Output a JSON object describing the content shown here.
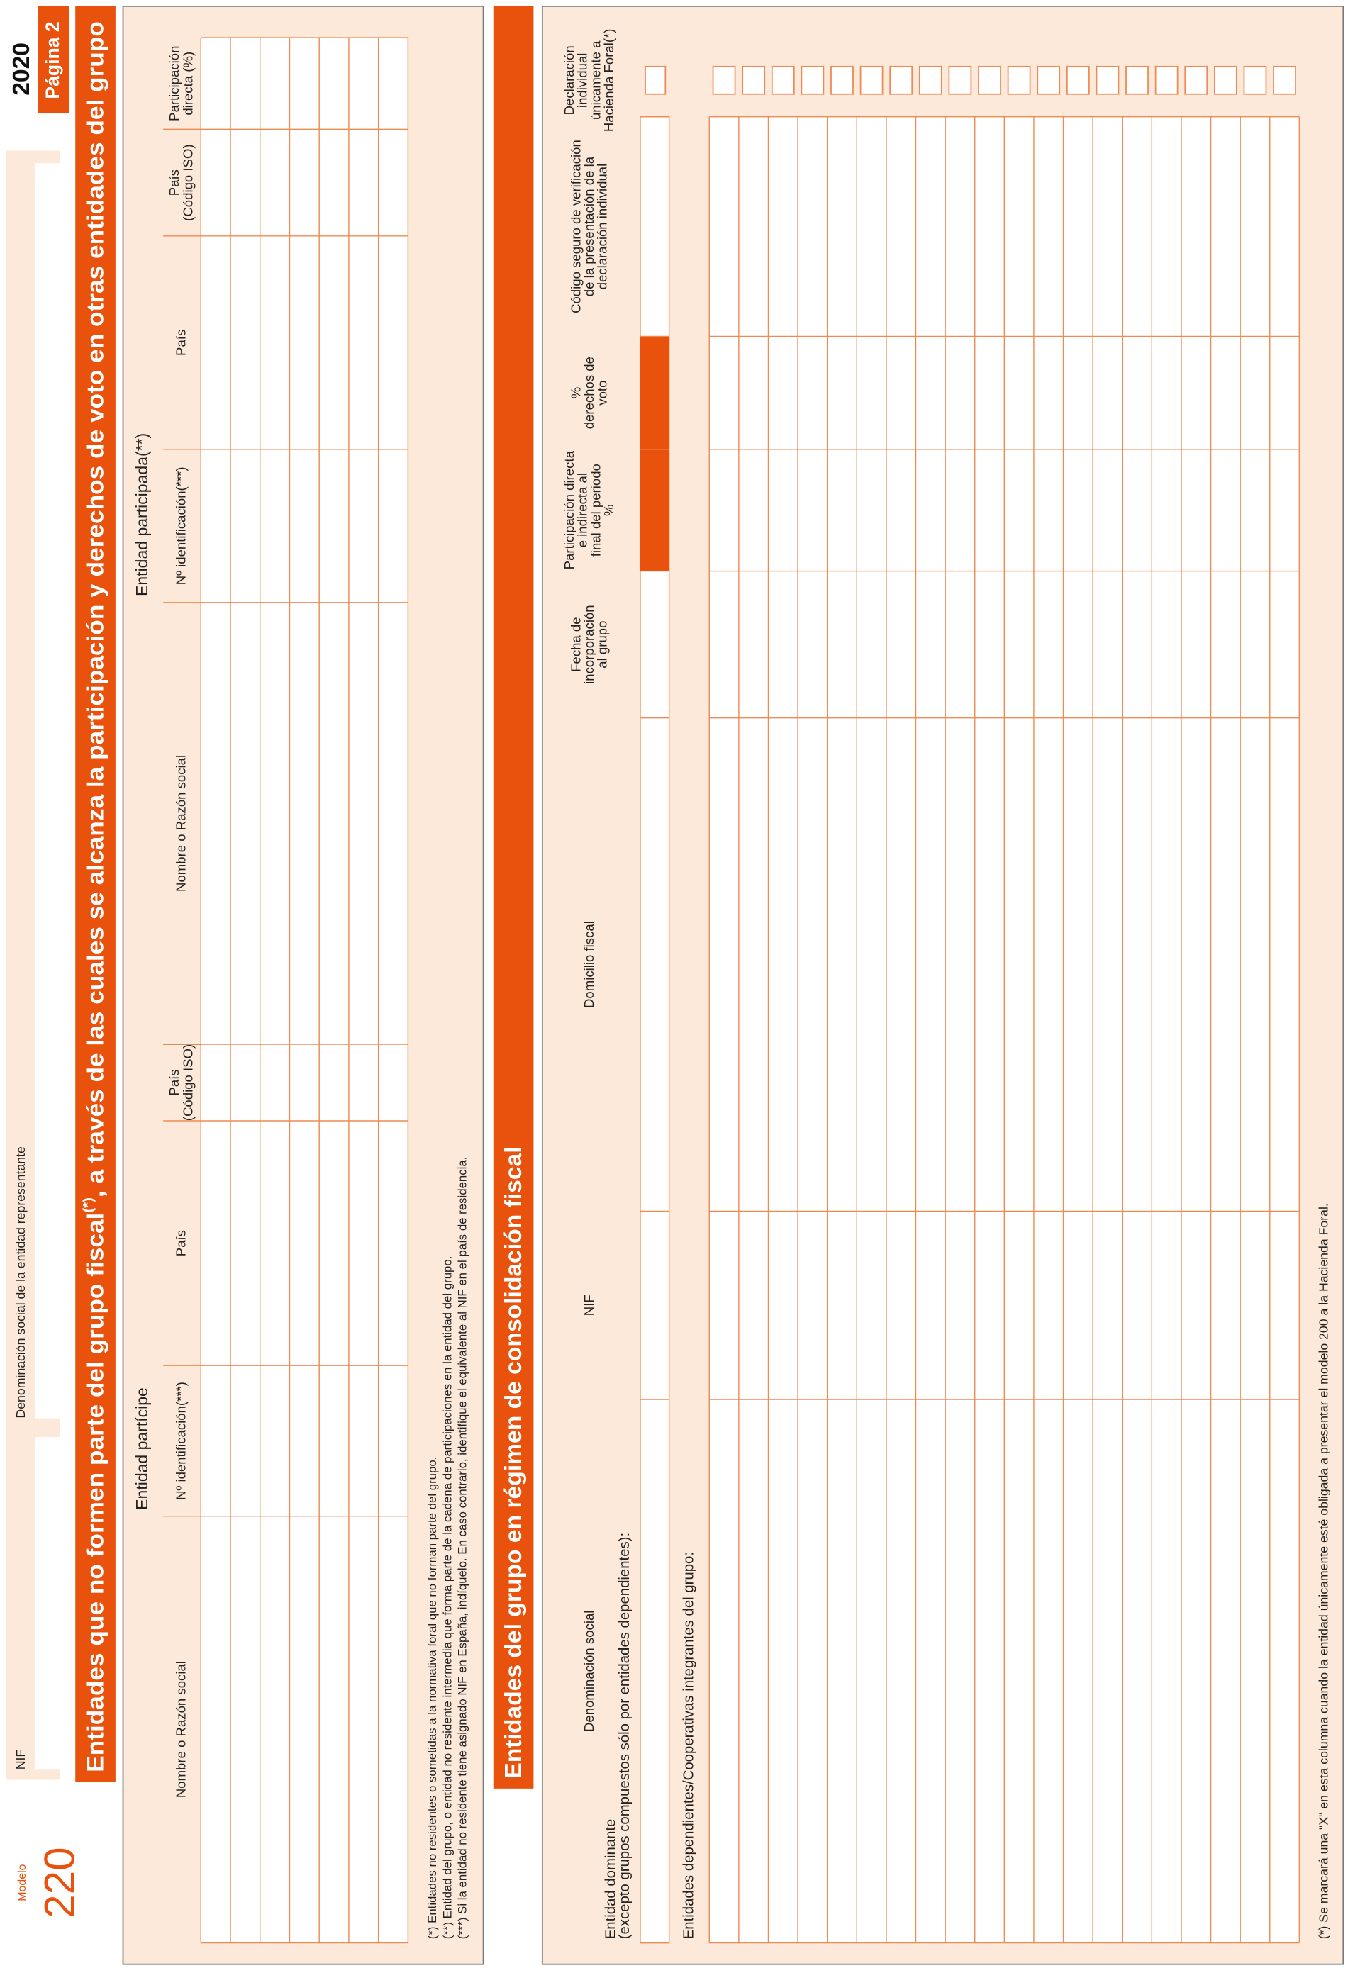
{
  "header": {
    "modelo": "Modelo",
    "numero": "220",
    "nif": "NIF",
    "denominacion": "Denominación social de la entidad representante",
    "year": "2020",
    "page": "Página 2"
  },
  "section1": {
    "title": [
      "Entidades que no formen parte del grupo fiscal",
      "(*)",
      ", a través de las cuales se alcanza la participación y derechos de voto en otras entidades del grupo"
    ],
    "participe": "Entidad partícipe",
    "participada": "Entidad participada(**)",
    "columns": [
      [
        "Nombre o Razón social"
      ],
      [
        "Nº identificación(***)"
      ],
      [
        "País"
      ],
      [
        "País",
        "(Código ISO)"
      ],
      [
        "Nombre o Razón social"
      ],
      [
        "Nº identificación(***)"
      ],
      [
        "País"
      ],
      [
        "País",
        "(Código ISO)"
      ],
      [
        "Participación",
        "directa (%)"
      ]
    ],
    "footnotes": [
      "(*) Entidades no residentes o sometidas a la normativa foral que no forman parte del grupo.",
      "(**) Entidad del grupo, o entidad no residente intermedia que forma parte de la cadena de participaciones en la entidad del grupo.",
      "(***) Si la entidad no residente tiene asignado NIF en España, indíquelo. En caso contrario, identifique el equivalente al NIF en el país de residencia."
    ]
  },
  "section2": {
    "title": "Entidades del grupo en régimen de consolidación fiscal",
    "columns": [
      [
        "Denominación social"
      ],
      [
        "NIF"
      ],
      [
        "Domicilio fiscal"
      ],
      [
        "Fecha de",
        "incorporación",
        "al grupo"
      ],
      [
        "Participación directa",
        "e indirecta al",
        "final del periodo",
        "%"
      ],
      [
        "%",
        "derechos de",
        "voto"
      ],
      [
        "Código seguro de verificación",
        "de la presentación de la",
        "declaración individual"
      ],
      [
        "Declaración",
        "individual",
        "únicamente a",
        "Hacienda Foral(*)"
      ]
    ],
    "dominante": [
      "Entidad dominante",
      "(excepto grupos compuestos sólo por entidades dependientes):"
    ],
    "dependientes": "Entidades dependientes/Cooperativas integrantes del grupo:",
    "footnote": "(*) Se marcará una \"X\" en esta columna cuando la entidad únicamente esté obligada a presentar el modelo 200 a la Hacienda Foral."
  }
}
